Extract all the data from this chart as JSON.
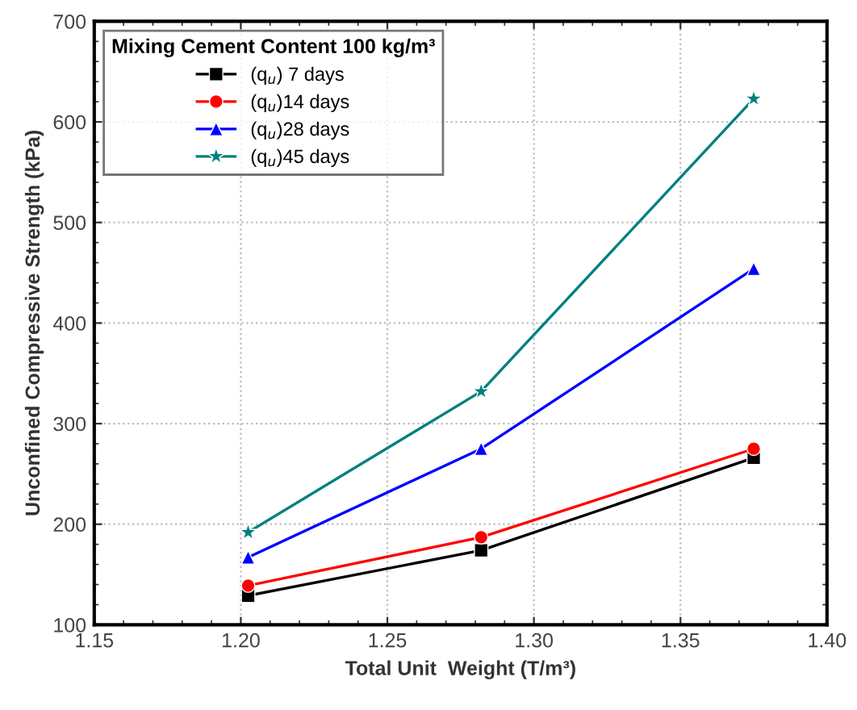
{
  "chart_data": {
    "type": "line",
    "xlabel": "Total Unit  Weight (T/m³)",
    "ylabel": "Unconfined Compressive Strength (kPa)",
    "legend_title": "Mixing Cement Content 100 kg/m³",
    "x": [
      1.2025,
      1.282,
      1.375
    ],
    "series": [
      {
        "name": "(q$_{u}$) 7 days",
        "color": "#000000",
        "marker": "square",
        "values": [
          129,
          174,
          266
        ]
      },
      {
        "name": "(q$_{u}$)14 days",
        "color": "#ff0000",
        "marker": "circle",
        "values": [
          139,
          187,
          275
        ]
      },
      {
        "name": "(q$_{u}$)28 days",
        "color": "#0000ff",
        "marker": "triangle",
        "values": [
          167,
          275,
          454
        ]
      },
      {
        "name": "(q$_{u}$)45 days",
        "color": "#008080",
        "marker": "star",
        "values": [
          192,
          332,
          623
        ]
      }
    ],
    "xlim": [
      1.15,
      1.4
    ],
    "xticks": [
      {
        "value": 1.15,
        "label": "1.15"
      },
      {
        "value": 1.2,
        "label": "1.20"
      },
      {
        "value": 1.25,
        "label": "1.25"
      },
      {
        "value": 1.3,
        "label": "1.30"
      },
      {
        "value": 1.35,
        "label": "1.35"
      },
      {
        "value": 1.4,
        "label": "1.40"
      }
    ],
    "ylim": [
      100,
      700
    ],
    "yticks": [
      100,
      200,
      300,
      400,
      500,
      600,
      700
    ],
    "grid": true,
    "legend": "top left",
    "line_style": "solid"
  }
}
